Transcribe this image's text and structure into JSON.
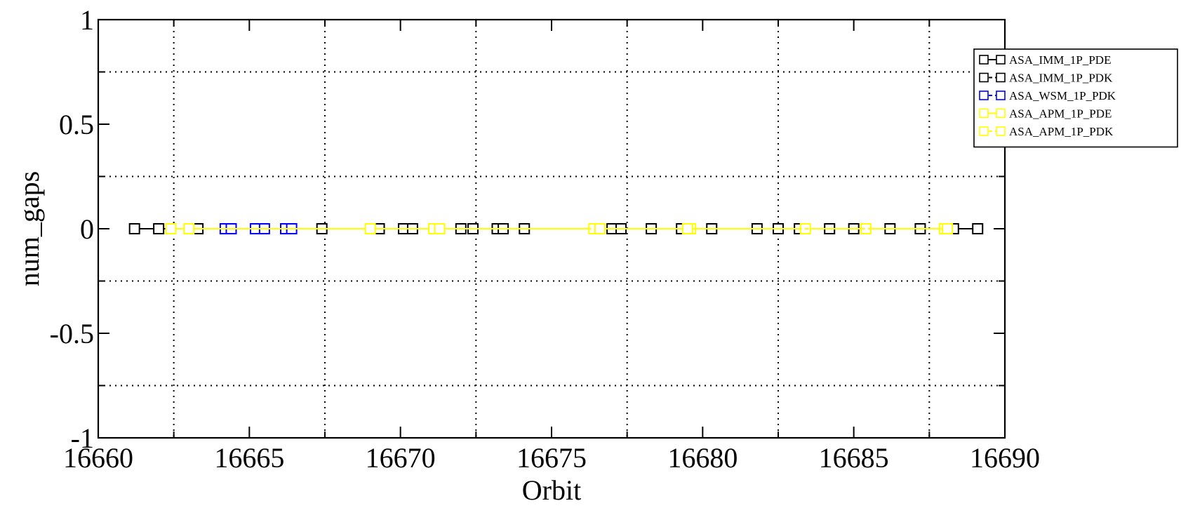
{
  "chart_data": {
    "type": "scatter",
    "title": "",
    "xlabel": "Orbit",
    "ylabel": "num_gaps",
    "xlim": [
      16660,
      16690
    ],
    "ylim": [
      -1,
      1
    ],
    "x_ticks": [
      16660,
      16665,
      16670,
      16675,
      16680,
      16685,
      16690
    ],
    "x_tick_labels": [
      "16660",
      "16665",
      "16670",
      "16675",
      "16680",
      "16685",
      "16690"
    ],
    "y_ticks": [
      1,
      0.5,
      0,
      -0.5,
      -1
    ],
    "y_tick_labels": [
      "1",
      "0.5",
      "0",
      "-0.5",
      "-1"
    ],
    "grid": true,
    "legend_position": "top-right",
    "series": [
      {
        "name": "ASA_IMM_1P_PDE",
        "color": "#000000",
        "line": "solid",
        "marker": "square",
        "x": [
          16661.2,
          16662.0,
          16667.4,
          16673.2,
          16677.0,
          16680.3,
          16681.8,
          16683.2,
          16684.2,
          16686.2,
          16687.2,
          16689.1
        ],
        "y": [
          0,
          0,
          0,
          0,
          0,
          0,
          0,
          0,
          0,
          0,
          0,
          0
        ]
      },
      {
        "name": "ASA_IMM_1P_PDK",
        "color": "#000000",
        "line": "dashed",
        "marker": "square",
        "x": [
          16663.3,
          16669.3,
          16670.1,
          16670.4,
          16672.0,
          16672.4,
          16673.4,
          16674.1,
          16677.3,
          16678.3,
          16679.3,
          16682.5,
          16685.0,
          16688.3
        ],
        "y": [
          0,
          0,
          0,
          0,
          0,
          0,
          0,
          0,
          0,
          0,
          0,
          0,
          0,
          0
        ]
      },
      {
        "name": "ASA_WSM_1P_PDK",
        "color": "#0000ff",
        "line": "dashed",
        "marker": "square",
        "x": [
          16664.2,
          16664.4,
          16665.2,
          16665.5,
          16666.2,
          16666.4
        ],
        "y": [
          0,
          0,
          0,
          0,
          0,
          0
        ]
      },
      {
        "name": "ASA_APM_1P_PDE",
        "color": "#ffff00",
        "line": "solid",
        "marker": "square",
        "x": [
          16662.4,
          16663.0,
          16669.0,
          16671.1,
          16676.4,
          16679.6,
          16683.4,
          16685.4,
          16688.0
        ],
        "y": [
          0,
          0,
          0,
          0,
          0,
          0,
          0,
          0,
          0
        ]
      },
      {
        "name": "ASA_APM_1P_PDK",
        "color": "#ffff00",
        "line": "dashed",
        "marker": "square",
        "x": [
          16671.3,
          16676.6,
          16679.5,
          16688.1
        ],
        "y": [
          0,
          0,
          0,
          0
        ]
      }
    ]
  }
}
